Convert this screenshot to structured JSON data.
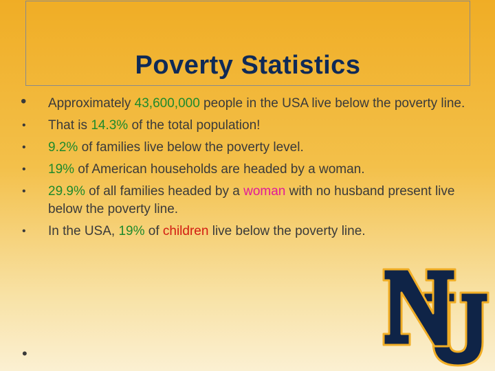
{
  "slide": {
    "title": "Poverty Statistics",
    "bullets": [
      {
        "parts": [
          " Approximately ",
          "43,600,000",
          " people in the USA live below the poverty line."
        ]
      },
      {
        "parts": [
          "That is ",
          "14.3%",
          " of the total population!"
        ]
      },
      {
        "parts": [
          "",
          "9.2%",
          " of families live below the poverty level."
        ]
      },
      {
        "parts": [
          "",
          "19%",
          " of American households are headed by a woman."
        ]
      },
      {
        "parts": [
          "",
          "29.9%",
          " of all families headed by a ",
          "woman",
          " with no husband present live below the poverty line."
        ]
      },
      {
        "parts": [
          "In the USA, ",
          "19%",
          " of ",
          "children",
          " live below the poverty line."
        ]
      }
    ],
    "bullet_glyph": "•"
  },
  "colors": {
    "title": "#0f2a57",
    "highlight_green": "#1e8a2c",
    "highlight_pink": "#e01a9a",
    "highlight_red": "#d21c12",
    "logo_navy": "#0f2447",
    "logo_gold": "#f0ad25"
  },
  "logo": {
    "text": "NU"
  }
}
